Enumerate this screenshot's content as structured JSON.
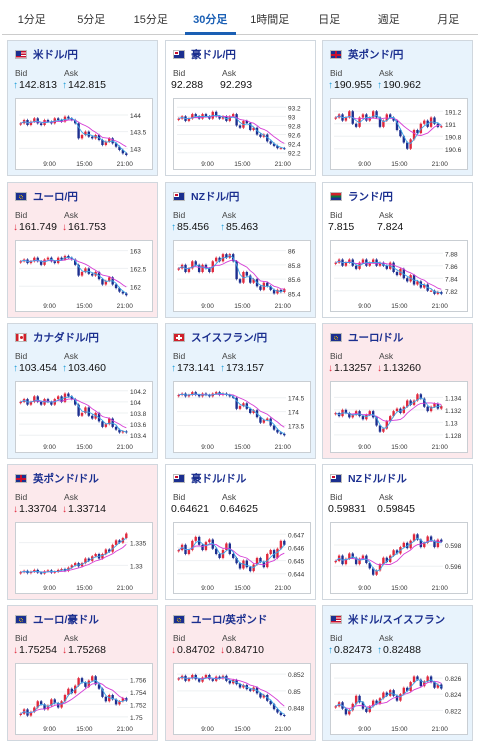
{
  "tabs": [
    "1分足",
    "5分足",
    "15分足",
    "30分足",
    "1時間足",
    "日足",
    "週足",
    "月足"
  ],
  "active_tab": 3,
  "labels": {
    "bid": "Bid",
    "ask": "Ask"
  },
  "x_ticks": [
    "9:00",
    "15:00",
    "21:00"
  ],
  "colors": {
    "bull": "#e0283c",
    "bear": "#1d2f8f",
    "ma": "#d63fd6",
    "ma2": "#3ba3e6",
    "up_bg": "#e8f3fc",
    "down_bg": "#fce9ec"
  },
  "cards": [
    {
      "title": "米ドル/円",
      "flag": "us",
      "dir": "up",
      "bid": "142.813",
      "ask": "142.815",
      "y_ticks": [
        "144",
        "143.5",
        "143"
      ],
      "series": [
        143.75,
        143.85,
        143.7,
        143.8,
        143.9,
        143.75,
        143.7,
        143.85,
        143.8,
        143.75,
        143.9,
        143.85,
        143.8,
        143.95,
        143.9,
        143.85,
        143.75,
        143.3,
        143.4,
        143.5,
        143.35,
        143.3,
        143.4,
        143.25,
        143.1,
        143.2,
        143.3,
        143.15,
        143.05,
        142.95,
        142.85,
        142.8
      ],
      "ylim": [
        142.8,
        144.3
      ]
    },
    {
      "title": "豪ドル/円",
      "flag": "au",
      "dir": "flat",
      "bid": "92.288",
      "ask": "92.293",
      "y_ticks": [
        "93.2",
        "93",
        "92.8",
        "92.6",
        "92.4",
        "92.2"
      ],
      "series": [
        92.95,
        93.0,
        92.9,
        92.95,
        93.05,
        93.0,
        92.95,
        93.05,
        93.0,
        92.95,
        93.1,
        93.0,
        92.95,
        93.0,
        92.9,
        93.0,
        93.05,
        92.8,
        92.75,
        92.9,
        92.85,
        92.7,
        92.75,
        92.6,
        92.55,
        92.6,
        92.45,
        92.4,
        92.35,
        92.3,
        92.3,
        92.29
      ],
      "ylim": [
        92.15,
        93.25
      ]
    },
    {
      "title": "英ポンド/円",
      "flag": "gb",
      "dir": "up",
      "bid": "190.955",
      "ask": "190.962",
      "y_ticks": [
        "191.2",
        "191",
        "190.8",
        "190.6"
      ],
      "series": [
        191.1,
        191.15,
        191.05,
        191.1,
        191.2,
        191.0,
        190.95,
        191.1,
        191.15,
        191.05,
        191.1,
        191.2,
        191.1,
        190.95,
        191.05,
        191.15,
        191.1,
        191.05,
        190.9,
        190.8,
        190.7,
        190.6,
        190.75,
        190.9,
        190.85,
        191.0,
        191.05,
        190.95,
        191.1,
        191.0,
        190.95,
        190.96
      ],
      "ylim": [
        190.5,
        191.3
      ]
    },
    {
      "title": "ユーロ/円",
      "flag": "eu",
      "dir": "down",
      "bid": "161.749",
      "ask": "161.753",
      "y_ticks": [
        "163",
        "162.5",
        "162"
      ],
      "series": [
        162.7,
        162.75,
        162.65,
        162.7,
        162.8,
        162.7,
        162.6,
        162.75,
        162.8,
        162.7,
        162.65,
        162.8,
        162.75,
        162.85,
        162.8,
        162.75,
        162.6,
        162.3,
        162.4,
        162.5,
        162.35,
        162.3,
        162.4,
        162.2,
        162.05,
        162.15,
        162.25,
        162.05,
        161.95,
        161.85,
        161.8,
        161.75
      ],
      "ylim": [
        161.7,
        163.1
      ]
    },
    {
      "title": "NZドル/円",
      "flag": "nz",
      "dir": "up",
      "bid": "85.456",
      "ask": "85.463",
      "y_ticks": [
        "86",
        "85.8",
        "85.6",
        "85.4"
      ],
      "series": [
        85.75,
        85.8,
        85.7,
        85.75,
        85.85,
        85.8,
        85.7,
        85.8,
        85.75,
        85.7,
        85.85,
        85.9,
        85.85,
        85.95,
        85.9,
        85.95,
        85.85,
        85.6,
        85.55,
        85.7,
        85.65,
        85.55,
        85.6,
        85.5,
        85.45,
        85.55,
        85.5,
        85.45,
        85.4,
        85.45,
        85.42,
        85.46
      ],
      "ylim": [
        85.35,
        86.05
      ]
    },
    {
      "title": "ランド/円",
      "flag": "za",
      "dir": "flat",
      "bid": "7.815",
      "ask": "7.824",
      "y_ticks": [
        "7.88",
        "7.86",
        "7.84",
        "7.82"
      ],
      "series": [
        7.865,
        7.87,
        7.86,
        7.865,
        7.87,
        7.86,
        7.855,
        7.865,
        7.87,
        7.86,
        7.865,
        7.87,
        7.86,
        7.865,
        7.86,
        7.855,
        7.865,
        7.85,
        7.845,
        7.855,
        7.84,
        7.835,
        7.845,
        7.83,
        7.835,
        7.825,
        7.83,
        7.82,
        7.82,
        7.815,
        7.818,
        7.815
      ],
      "ylim": [
        7.81,
        7.89
      ]
    },
    {
      "title": "カナダドル/円",
      "flag": "ca",
      "dir": "up",
      "bid": "103.454",
      "ask": "103.460",
      "y_ticks": [
        "104.2",
        "104",
        "103.8",
        "103.6",
        "103.4"
      ],
      "series": [
        104.0,
        104.05,
        103.95,
        104.0,
        104.1,
        104.0,
        103.95,
        104.05,
        104.0,
        103.95,
        104.05,
        104.1,
        104.0,
        104.15,
        104.1,
        104.05,
        103.95,
        103.75,
        103.8,
        103.9,
        103.75,
        103.7,
        103.8,
        103.65,
        103.55,
        103.6,
        103.7,
        103.55,
        103.5,
        103.45,
        103.47,
        103.45
      ],
      "ylim": [
        103.35,
        104.25
      ]
    },
    {
      "title": "スイスフラン/円",
      "flag": "ch",
      "dir": "up",
      "bid": "173.141",
      "ask": "173.157",
      "y_ticks": [
        "174.5",
        "174",
        "173.5"
      ],
      "series": [
        174.6,
        174.65,
        174.55,
        174.6,
        174.7,
        174.6,
        174.55,
        174.65,
        174.6,
        174.55,
        174.65,
        174.7,
        174.6,
        174.65,
        174.6,
        174.55,
        174.5,
        174.1,
        174.2,
        174.3,
        174.1,
        173.95,
        174.05,
        173.8,
        173.6,
        173.7,
        173.75,
        173.5,
        173.35,
        173.25,
        173.2,
        173.15
      ],
      "ylim": [
        173.05,
        174.85
      ]
    },
    {
      "title": "ユーロ/ドル",
      "flag": "eu",
      "dir": "down",
      "bid": "1.13257",
      "ask": "1.13260",
      "y_ticks": [
        "1.134",
        "1.132",
        "1.13",
        "1.128"
      ],
      "series": [
        1.1315,
        1.131,
        1.132,
        1.1315,
        1.1308,
        1.1312,
        1.1318,
        1.131,
        1.1305,
        1.1312,
        1.1318,
        1.1308,
        1.1295,
        1.1285,
        1.129,
        1.1302,
        1.131,
        1.1318,
        1.1322,
        1.1315,
        1.1325,
        1.1335,
        1.1328,
        1.1335,
        1.1345,
        1.1338,
        1.1325,
        1.1318,
        1.1325,
        1.133,
        1.1322,
        1.1326
      ],
      "ylim": [
        1.1275,
        1.1355
      ]
    },
    {
      "title": "英ポンド/ドル",
      "flag": "gb",
      "dir": "down",
      "bid": "1.33704",
      "ask": "1.33714",
      "y_ticks": [
        "1.335",
        "1.33"
      ],
      "series": [
        1.3285,
        1.3288,
        1.3283,
        1.3286,
        1.329,
        1.3284,
        1.3282,
        1.3287,
        1.3289,
        1.3284,
        1.3286,
        1.329,
        1.3292,
        1.3288,
        1.3295,
        1.33,
        1.3305,
        1.3298,
        1.3305,
        1.3315,
        1.331,
        1.332,
        1.3325,
        1.3315,
        1.3325,
        1.3335,
        1.333,
        1.3345,
        1.3355,
        1.335,
        1.336,
        1.337
      ],
      "ylim": [
        1.327,
        1.338
      ]
    },
    {
      "title": "豪ドル/ドル",
      "flag": "au",
      "dir": "flat",
      "bid": "0.64621",
      "ask": "0.64625",
      "y_ticks": [
        "0.647",
        "0.646",
        "0.645",
        "0.644"
      ],
      "series": [
        0.6458,
        0.6462,
        0.6455,
        0.6458,
        0.6465,
        0.6468,
        0.6462,
        0.6458,
        0.6464,
        0.6466,
        0.6459,
        0.6455,
        0.6452,
        0.6458,
        0.6463,
        0.6455,
        0.6452,
        0.6448,
        0.6444,
        0.645,
        0.6445,
        0.6442,
        0.6447,
        0.6452,
        0.6449,
        0.6445,
        0.6455,
        0.6458,
        0.6452,
        0.6459,
        0.6465,
        0.6462
      ],
      "ylim": [
        0.6436,
        0.6474
      ]
    },
    {
      "title": "NZドル/ドル",
      "flag": "nz",
      "dir": "flat",
      "bid": "0.59831",
      "ask": "0.59845",
      "y_ticks": [
        "0.598",
        "0.596"
      ],
      "series": [
        0.5965,
        0.597,
        0.5962,
        0.5967,
        0.5972,
        0.5968,
        0.5962,
        0.5967,
        0.597,
        0.5963,
        0.5958,
        0.5952,
        0.5956,
        0.5962,
        0.5968,
        0.5964,
        0.597,
        0.5975,
        0.5972,
        0.5978,
        0.5982,
        0.5977,
        0.5984,
        0.599,
        0.5985,
        0.5978,
        0.5982,
        0.5988,
        0.5984,
        0.5978,
        0.5985,
        0.5983
      ],
      "ylim": [
        0.5948,
        0.5995
      ]
    },
    {
      "title": "ユーロ/豪ドル",
      "flag": "eu",
      "dir": "down",
      "bid": "1.75254",
      "ask": "1.75268",
      "y_ticks": [
        "1.756",
        "1.754",
        "1.752",
        "1.75"
      ],
      "series": [
        1.7505,
        1.7512,
        1.7502,
        1.7508,
        1.7515,
        1.7525,
        1.752,
        1.7512,
        1.7518,
        1.7528,
        1.7522,
        1.7515,
        1.7525,
        1.7535,
        1.7545,
        1.7538,
        1.755,
        1.7562,
        1.7555,
        1.7548,
        1.7558,
        1.7565,
        1.7552,
        1.7545,
        1.7532,
        1.7525,
        1.7535,
        1.7528,
        1.752,
        1.7525,
        1.753,
        1.7526
      ],
      "ylim": [
        1.7495,
        1.7575
      ]
    },
    {
      "title": "ユーロ/英ポンド",
      "flag": "eu",
      "dir": "down",
      "bid": "0.84702",
      "ask": "0.84710",
      "y_ticks": [
        "0.852",
        "0.85",
        "0.848"
      ],
      "series": [
        0.8515,
        0.8518,
        0.8512,
        0.8515,
        0.8519,
        0.8514,
        0.8511,
        0.8516,
        0.8519,
        0.8514,
        0.8512,
        0.8517,
        0.8515,
        0.8518,
        0.8512,
        0.8509,
        0.8513,
        0.8508,
        0.8504,
        0.8507,
        0.8502,
        0.85,
        0.8504,
        0.8497,
        0.8492,
        0.8495,
        0.8488,
        0.8484,
        0.8478,
        0.8474,
        0.8471,
        0.847
      ],
      "ylim": [
        0.8465,
        0.8525
      ]
    },
    {
      "title": "米ドル/スイスフラン",
      "flag": "us",
      "dir": "up",
      "bid": "0.82473",
      "ask": "0.82488",
      "y_ticks": [
        "0.826",
        "0.824",
        "0.822"
      ],
      "series": [
        0.8225,
        0.823,
        0.8222,
        0.8215,
        0.822,
        0.8228,
        0.8238,
        0.823,
        0.8222,
        0.8218,
        0.8225,
        0.8232,
        0.8228,
        0.8235,
        0.8242,
        0.8238,
        0.8245,
        0.8238,
        0.8232,
        0.824,
        0.8248,
        0.8244,
        0.8255,
        0.8262,
        0.8258,
        0.825,
        0.8256,
        0.8262,
        0.8255,
        0.8248,
        0.8252,
        0.8247
      ],
      "ylim": [
        0.8208,
        0.827
      ]
    }
  ]
}
